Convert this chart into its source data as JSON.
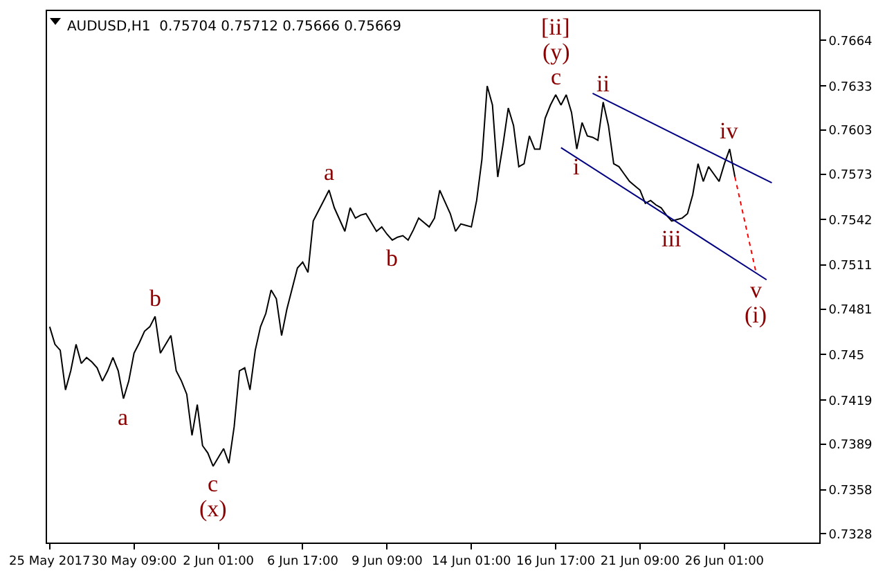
{
  "chart_data": {
    "type": "line",
    "title": "AUDUSD,H1  0.75704 0.75712 0.75666 0.75669",
    "categories": [
      "25 May 2017",
      null,
      null,
      null,
      null,
      null,
      null,
      null,
      null,
      null,
      null,
      null,
      null,
      null,
      null,
      null,
      "30 May 09:00",
      null,
      null,
      null,
      null,
      null,
      null,
      null,
      null,
      null,
      null,
      null,
      null,
      null,
      null,
      null,
      "2 Jun 01:00",
      null,
      null,
      null,
      null,
      null,
      null,
      null,
      null,
      null,
      null,
      null,
      null,
      null,
      null,
      null,
      "6 Jun 17:00",
      null,
      null,
      null,
      null,
      null,
      null,
      null,
      null,
      null,
      null,
      null,
      null,
      null,
      null,
      null,
      "9 Jun 09:00",
      null,
      null,
      null,
      null,
      null,
      null,
      null,
      null,
      null,
      null,
      null,
      null,
      null,
      null,
      null,
      "14 Jun 01:00",
      null,
      null,
      null,
      null,
      null,
      null,
      null,
      null,
      null,
      null,
      null,
      null,
      null,
      null,
      null,
      "16 Jun 17:00",
      null,
      null,
      null,
      null,
      null,
      null,
      null,
      null,
      null,
      null,
      null,
      null,
      null,
      null,
      null,
      "21 Jun 09:00",
      null,
      null,
      null,
      null,
      null,
      null,
      null,
      null,
      null,
      null,
      null,
      null,
      null,
      null,
      null,
      "26 Jun 01:00",
      null,
      null,
      null,
      null,
      null,
      null,
      null,
      null,
      null
    ],
    "series": [
      {
        "color": "#000000",
        "values": [
          0.7469,
          0.7457,
          0.7453,
          0.7426,
          0.7439,
          0.7457,
          0.7444,
          0.7448,
          0.7445,
          0.7441,
          0.7432,
          0.7439,
          0.7448,
          0.7439,
          0.742,
          0.7432,
          0.7451,
          0.7458,
          0.7466,
          0.7469,
          0.7476,
          0.7451,
          0.7457,
          0.7463,
          0.7439,
          0.7432,
          0.7423,
          0.7395,
          0.7416,
          0.7388,
          0.7383,
          0.7374,
          0.738,
          0.7386,
          0.7376,
          0.7401,
          0.7439,
          0.7441,
          0.7426,
          0.7453,
          0.7469,
          0.7478,
          0.7494,
          0.7488,
          0.7463,
          0.7481,
          0.7495,
          0.7509,
          0.7513,
          0.7506,
          0.7541,
          0.7548,
          0.7555,
          0.7562,
          0.755,
          0.7542,
          0.7534,
          0.755,
          0.7543,
          0.7545,
          0.7546,
          0.754,
          0.7534,
          0.7537,
          0.7532,
          0.7528,
          0.753,
          0.7531,
          0.7528,
          0.7535,
          0.7543,
          0.754,
          0.7537,
          0.7543,
          0.7562,
          0.7554,
          0.7546,
          0.7534,
          0.7539,
          0.7538,
          0.7537,
          0.7555,
          0.7583,
          0.7633,
          0.762,
          0.7571,
          0.7593,
          0.7618,
          0.7606,
          0.7578,
          0.758,
          0.7599,
          0.759,
          0.759,
          0.7611,
          0.762,
          0.7627,
          0.762,
          0.7627,
          0.7615,
          0.759,
          0.7608,
          0.7599,
          0.7598,
          0.7596,
          0.7622,
          0.7606,
          0.758,
          0.7578,
          0.7573,
          0.7568,
          0.7565,
          0.7562,
          0.7553,
          0.7555,
          0.7552,
          0.755,
          0.7545,
          0.7541,
          0.7542,
          0.7543,
          0.7546,
          0.7559,
          0.758,
          0.7568,
          0.7578,
          0.7573,
          0.7568,
          0.758,
          0.759,
          0.7571,
          null,
          null,
          null,
          null,
          null,
          null,
          null
        ]
      },
      {
        "type": "line",
        "color": "#000080",
        "values": [
          null,
          null,
          null,
          null,
          null,
          null,
          null,
          null,
          null,
          null,
          null,
          null,
          null,
          null,
          null,
          null,
          null,
          null,
          null,
          null,
          null,
          null,
          null,
          null,
          null,
          null,
          null,
          null,
          null,
          null,
          null,
          null,
          null,
          null,
          null,
          null,
          null,
          null,
          null,
          null,
          null,
          null,
          null,
          null,
          null,
          null,
          null,
          null,
          null,
          null,
          null,
          null,
          null,
          null,
          null,
          null,
          null,
          null,
          null,
          null,
          null,
          null,
          null,
          null,
          null,
          null,
          null,
          null,
          null,
          null,
          null,
          null,
          null,
          null,
          null,
          null,
          null,
          null,
          null,
          null,
          null,
          null,
          null,
          null,
          null,
          null,
          null,
          null,
          null,
          null,
          null,
          null,
          null,
          null,
          null,
          null,
          null,
          null,
          null,
          null,
          null,
          null,
          null,
          0.7628,
          null,
          null,
          null,
          null,
          null,
          null,
          null,
          null,
          null,
          null,
          null,
          null,
          null,
          null,
          null,
          null,
          null,
          null,
          null,
          null,
          null,
          null,
          null,
          null,
          null,
          null,
          null,
          null,
          null,
          null,
          null,
          null,
          null,
          0.7567
        ]
      },
      {
        "type": "line",
        "color": "#000080",
        "values": [
          null,
          null,
          null,
          null,
          null,
          null,
          null,
          null,
          null,
          null,
          null,
          null,
          null,
          null,
          null,
          null,
          null,
          null,
          null,
          null,
          null,
          null,
          null,
          null,
          null,
          null,
          null,
          null,
          null,
          null,
          null,
          null,
          null,
          null,
          null,
          null,
          null,
          null,
          null,
          null,
          null,
          null,
          null,
          null,
          null,
          null,
          null,
          null,
          null,
          null,
          null,
          null,
          null,
          null,
          null,
          null,
          null,
          null,
          null,
          null,
          null,
          null,
          null,
          null,
          null,
          null,
          null,
          null,
          null,
          null,
          null,
          null,
          null,
          null,
          null,
          null,
          null,
          null,
          null,
          null,
          null,
          null,
          null,
          null,
          null,
          null,
          null,
          null,
          null,
          null,
          null,
          null,
          null,
          null,
          null,
          null,
          null,
          0.7591,
          null,
          null,
          null,
          null,
          null,
          null,
          null,
          null,
          null,
          null,
          null,
          null,
          null,
          null,
          null,
          null,
          null,
          null,
          null,
          null,
          null,
          null,
          null,
          null,
          null,
          null,
          null,
          null,
          null,
          null,
          null,
          null,
          null,
          null,
          null,
          null,
          null,
          null,
          0.7501,
          null
        ]
      },
      {
        "type": "line",
        "color": "#ff0000",
        "line_style": "dotted",
        "values": [
          null,
          null,
          null,
          null,
          null,
          null,
          null,
          null,
          null,
          null,
          null,
          null,
          null,
          null,
          null,
          null,
          null,
          null,
          null,
          null,
          null,
          null,
          null,
          null,
          null,
          null,
          null,
          null,
          null,
          null,
          null,
          null,
          null,
          null,
          null,
          null,
          null,
          null,
          null,
          null,
          null,
          null,
          null,
          null,
          null,
          null,
          null,
          null,
          null,
          null,
          null,
          null,
          null,
          null,
          null,
          null,
          null,
          null,
          null,
          null,
          null,
          null,
          null,
          null,
          null,
          null,
          null,
          null,
          null,
          null,
          null,
          null,
          null,
          null,
          null,
          null,
          null,
          null,
          null,
          null,
          null,
          null,
          null,
          null,
          null,
          null,
          null,
          null,
          null,
          null,
          null,
          null,
          null,
          null,
          null,
          null,
          null,
          null,
          null,
          null,
          null,
          null,
          null,
          null,
          null,
          null,
          null,
          null,
          null,
          null,
          null,
          null,
          null,
          null,
          null,
          null,
          null,
          null,
          null,
          null,
          null,
          null,
          null,
          null,
          null,
          null,
          null,
          null,
          null,
          null,
          0.7571,
          null,
          null,
          null,
          0.7506,
          null,
          null,
          null
        ]
      }
    ],
    "ylim": [
      0.7322,
      0.7684
    ],
    "yticks": [
      0.7328,
      0.7358,
      0.7389,
      0.7419,
      0.745,
      0.7481,
      0.7511,
      0.7542,
      0.7573,
      0.7603,
      0.7633,
      0.7664
    ],
    "marker": "none",
    "line_style": "solid",
    "grid": false,
    "annotations": [
      {
        "text": "a",
        "y": 0.742
      },
      {
        "text": "b",
        "y": 0.7476
      },
      {
        "text": "c",
        "y": 0.7374
      },
      {
        "text": "(x)",
        "y": 0.7374
      },
      {
        "text": "a",
        "y": 0.7562
      },
      {
        "text": "b",
        "y": 0.7528
      },
      {
        "text": "c",
        "y": 0.7627
      },
      {
        "text": "(y)",
        "y": 0.7627
      },
      {
        "text": "[ii]",
        "y": 0.7627
      },
      {
        "text": "i",
        "y": 0.759
      },
      {
        "text": "ii",
        "y": 0.7622
      },
      {
        "text": "iii",
        "y": 0.7541
      },
      {
        "text": "iv",
        "y": 0.759
      },
      {
        "text": "v",
        "y": 0.7506
      },
      {
        "text": "(i)",
        "y": 0.7506
      }
    ]
  }
}
